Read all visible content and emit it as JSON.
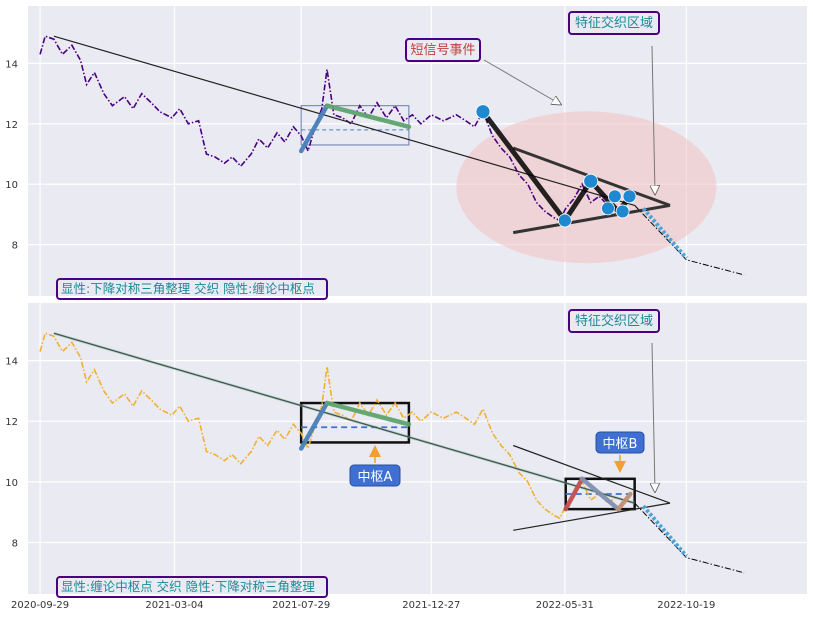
{
  "chart_data": {
    "type": "line",
    "shared_x_ticks": [
      "2020-09-29",
      "2021-03-04",
      "2021-07-29",
      "2021-12-27",
      "2022-05-31",
      "2022-10-19"
    ],
    "y_ticks": [
      "8",
      "10",
      "12",
      "14"
    ],
    "x_range": [
      "2020-09-15",
      "2023-03-08"
    ],
    "y_range": [
      6.3,
      15.9
    ],
    "grid": true,
    "colors": {
      "panel_bg": "#eaeaf2",
      "grid": "#c8c8c8",
      "price_top": "#4b0082",
      "price_bottom": "#f0b030",
      "trend_line": "#000000",
      "stroke_blue": "#4a7fb8",
      "stroke_green": "#5fa46b",
      "stroke_red": "#c05050",
      "stroke_brown": "#c09070",
      "marker_blue": "#1e88d0",
      "ellipse_fill": "#f2c4c4",
      "label_border": "#4b0082",
      "label_text_teal": "#1a8a9a",
      "label_text_red": "#c04040",
      "pivot_box_bg": "#3f6fd0"
    },
    "panels": [
      {
        "id": "top",
        "bottom_label": "显性:下降对称三角整理 交织 隐性:缠论中枢点",
        "region_label": "特征交织区域",
        "signal_label": "短信号事件",
        "series": [
          {
            "style": "dash-dot",
            "color": "#4b0082",
            "points": [
              [
                "2020-09-29",
                14.3
              ],
              [
                "2020-10-05",
                14.9
              ],
              [
                "2020-10-15",
                14.8
              ],
              [
                "2020-10-25",
                14.3
              ],
              [
                "2020-11-05",
                14.6
              ],
              [
                "2020-11-15",
                14.1
              ],
              [
                "2020-11-22",
                13.3
              ],
              [
                "2020-12-01",
                13.7
              ],
              [
                "2020-12-12",
                13.0
              ],
              [
                "2020-12-22",
                12.6
              ],
              [
                "2021-01-05",
                12.9
              ],
              [
                "2021-01-15",
                12.5
              ],
              [
                "2021-01-25",
                13.0
              ],
              [
                "2021-02-05",
                12.7
              ],
              [
                "2021-02-15",
                12.4
              ],
              [
                "2021-03-01",
                12.2
              ],
              [
                "2021-03-10",
                12.5
              ],
              [
                "2021-03-20",
                12.0
              ],
              [
                "2021-04-01",
                12.1
              ],
              [
                "2021-04-10",
                11.0
              ],
              [
                "2021-04-20",
                10.9
              ],
              [
                "2021-05-01",
                10.7
              ],
              [
                "2021-05-10",
                10.9
              ],
              [
                "2021-05-20",
                10.6
              ],
              [
                "2021-06-01",
                11.0
              ],
              [
                "2021-06-10",
                11.5
              ],
              [
                "2021-06-20",
                11.2
              ],
              [
                "2021-07-01",
                11.7
              ],
              [
                "2021-07-10",
                11.4
              ],
              [
                "2021-07-20",
                11.9
              ],
              [
                "2021-07-29",
                11.6
              ],
              [
                "2021-08-06",
                11.1
              ],
              [
                "2021-08-14",
                11.9
              ],
              [
                "2021-08-22",
                12.5
              ],
              [
                "2021-08-28",
                13.8
              ],
              [
                "2021-09-05",
                12.3
              ],
              [
                "2021-09-15",
                12.2
              ],
              [
                "2021-09-25",
                12.0
              ],
              [
                "2021-10-05",
                12.6
              ],
              [
                "2021-10-15",
                12.2
              ],
              [
                "2021-10-25",
                12.7
              ],
              [
                "2021-11-05",
                12.2
              ],
              [
                "2021-11-15",
                12.6
              ],
              [
                "2021-11-25",
                12.1
              ],
              [
                "2021-12-05",
                12.3
              ],
              [
                "2021-12-15",
                12.0
              ],
              [
                "2021-12-27",
                12.3
              ],
              [
                "2022-01-10",
                12.1
              ],
              [
                "2022-01-25",
                12.3
              ],
              [
                "2022-02-05",
                12.1
              ],
              [
                "2022-02-15",
                11.9
              ],
              [
                "2022-02-25",
                12.4
              ],
              [
                "2022-03-08",
                11.6
              ],
              [
                "2022-03-18",
                11.2
              ],
              [
                "2022-03-28",
                10.9
              ],
              [
                "2022-04-08",
                10.3
              ],
              [
                "2022-04-18",
                10.0
              ],
              [
                "2022-04-28",
                9.4
              ],
              [
                "2022-05-08",
                9.1
              ],
              [
                "2022-05-18",
                8.9
              ],
              [
                "2022-05-25",
                8.8
              ],
              [
                "2022-06-01",
                9.2
              ],
              [
                "2022-06-10",
                9.5
              ],
              [
                "2022-06-20",
                10.0
              ],
              [
                "2022-06-30",
                9.4
              ],
              [
                "2022-07-10",
                9.6
              ],
              [
                "2022-07-20",
                9.3
              ],
              [
                "2022-07-30",
                9.5
              ]
            ]
          },
          {
            "style": "dash-dot",
            "color": "#000000",
            "points": [
              [
                "2022-08-20",
                9.3
              ],
              [
                "2022-10-19",
                7.5
              ],
              [
                "2022-12-25",
                7.0
              ]
            ]
          }
        ],
        "trend_lines": [
          [
            [
              "2020-10-15",
              14.9
            ],
            [
              "2022-08-20",
              9.3
            ]
          ],
          [
            [
              "2022-04-01",
              11.2
            ],
            [
              "2022-09-30",
              9.3
            ]
          ],
          [
            [
              "2022-04-01",
              8.4
            ],
            [
              "2022-09-30",
              9.3
            ]
          ]
        ],
        "pivot_box": {
          "x": [
            "2021-07-29",
            "2021-12-01"
          ],
          "y": [
            11.3,
            12.6
          ],
          "mid": 11.8
        },
        "strokes": [
          {
            "color": "#4a7fb8",
            "points": [
              [
                "2021-07-29",
                11.1
              ],
              [
                "2021-08-28",
                12.6
              ]
            ]
          },
          {
            "color": "#5fa46b",
            "points": [
              [
                "2021-08-28",
                12.6
              ],
              [
                "2021-12-01",
                11.9
              ]
            ]
          },
          {
            "color": "#000000",
            "points": [
              [
                "2022-02-25",
                12.4
              ],
              [
                "2022-05-31",
                8.8
              ],
              [
                "2022-06-30",
                10.1
              ],
              [
                "2022-08-01",
                9.1
              ],
              [
                "2022-08-15",
                9.6
              ]
            ]
          }
        ],
        "markers": [
          [
            "2022-02-25",
            12.4
          ],
          [
            "2022-05-31",
            8.8
          ],
          [
            "2022-06-30",
            10.1
          ],
          [
            "2022-07-20",
            9.2
          ],
          [
            "2022-07-28",
            9.6
          ],
          [
            "2022-08-06",
            9.1
          ],
          [
            "2022-08-14",
            9.6
          ]
        ]
      },
      {
        "id": "bottom",
        "bottom_label": "显性:缠论中枢点 交织 隐性:下降对称三角整理",
        "region_label": "特征交织区域",
        "pivot_labels": [
          "中枢A",
          "中枢B"
        ],
        "series": [
          {
            "style": "dash-dot",
            "color": "#f0b030",
            "points": [
              [
                "2020-09-29",
                14.3
              ],
              [
                "2020-10-05",
                14.9
              ],
              [
                "2020-10-15",
                14.8
              ],
              [
                "2020-10-25",
                14.3
              ],
              [
                "2020-11-05",
                14.6
              ],
              [
                "2020-11-15",
                14.1
              ],
              [
                "2020-11-22",
                13.3
              ],
              [
                "2020-12-01",
                13.7
              ],
              [
                "2020-12-12",
                13.0
              ],
              [
                "2020-12-22",
                12.6
              ],
              [
                "2021-01-05",
                12.9
              ],
              [
                "2021-01-15",
                12.5
              ],
              [
                "2021-01-25",
                13.0
              ],
              [
                "2021-02-05",
                12.7
              ],
              [
                "2021-02-15",
                12.4
              ],
              [
                "2021-03-01",
                12.2
              ],
              [
                "2021-03-10",
                12.5
              ],
              [
                "2021-03-20",
                12.0
              ],
              [
                "2021-04-01",
                12.1
              ],
              [
                "2021-04-10",
                11.0
              ],
              [
                "2021-04-20",
                10.9
              ],
              [
                "2021-05-01",
                10.7
              ],
              [
                "2021-05-10",
                10.9
              ],
              [
                "2021-05-20",
                10.6
              ],
              [
                "2021-06-01",
                11.0
              ],
              [
                "2021-06-10",
                11.5
              ],
              [
                "2021-06-20",
                11.2
              ],
              [
                "2021-07-01",
                11.7
              ],
              [
                "2021-07-10",
                11.4
              ],
              [
                "2021-07-20",
                11.9
              ],
              [
                "2021-07-29",
                11.6
              ],
              [
                "2021-08-06",
                11.1
              ],
              [
                "2021-08-14",
                11.9
              ],
              [
                "2021-08-22",
                12.5
              ],
              [
                "2021-08-28",
                13.8
              ],
              [
                "2021-09-05",
                12.3
              ],
              [
                "2021-09-15",
                12.2
              ],
              [
                "2021-09-25",
                12.0
              ],
              [
                "2021-10-05",
                12.6
              ],
              [
                "2021-10-15",
                12.2
              ],
              [
                "2021-10-25",
                12.7
              ],
              [
                "2021-11-05",
                12.2
              ],
              [
                "2021-11-15",
                12.6
              ],
              [
                "2021-11-25",
                12.1
              ],
              [
                "2021-12-05",
                12.3
              ],
              [
                "2021-12-15",
                12.0
              ],
              [
                "2021-12-27",
                12.3
              ],
              [
                "2022-01-10",
                12.1
              ],
              [
                "2022-01-25",
                12.3
              ],
              [
                "2022-02-05",
                12.1
              ],
              [
                "2022-02-15",
                11.9
              ],
              [
                "2022-02-25",
                12.4
              ],
              [
                "2022-03-08",
                11.6
              ],
              [
                "2022-03-18",
                11.2
              ],
              [
                "2022-03-28",
                10.9
              ],
              [
                "2022-04-08",
                10.3
              ],
              [
                "2022-04-18",
                10.0
              ],
              [
                "2022-04-28",
                9.4
              ],
              [
                "2022-05-08",
                9.1
              ],
              [
                "2022-05-18",
                8.9
              ],
              [
                "2022-05-25",
                8.8
              ],
              [
                "2022-06-01",
                9.2
              ],
              [
                "2022-06-10",
                9.5
              ],
              [
                "2022-06-20",
                10.0
              ],
              [
                "2022-06-30",
                9.4
              ],
              [
                "2022-07-10",
                9.6
              ],
              [
                "2022-07-20",
                9.3
              ],
              [
                "2022-07-30",
                9.5
              ]
            ]
          },
          {
            "style": "dash-dot",
            "color": "#000000",
            "points": [
              [
                "2022-08-20",
                9.3
              ],
              [
                "2022-10-19",
                7.5
              ],
              [
                "2022-12-25",
                7.0
              ]
            ]
          }
        ],
        "trend_lines": [
          [
            [
              "2020-10-15",
              14.9
            ],
            [
              "2022-08-20",
              9.3
            ]
          ],
          [
            [
              "2022-04-01",
              11.2
            ],
            [
              "2022-09-30",
              9.3
            ]
          ],
          [
            [
              "2022-04-01",
              8.4
            ],
            [
              "2022-09-30",
              9.3
            ]
          ]
        ],
        "pivot_boxes": [
          {
            "x": [
              "2021-07-29",
              "2021-12-01"
            ],
            "y": [
              11.3,
              12.6
            ],
            "mid": 11.8
          },
          {
            "x": [
              "2022-06-01",
              "2022-08-20"
            ],
            "y": [
              9.1,
              10.1
            ],
            "mid": 9.6
          }
        ],
        "strokes": [
          {
            "color": "#4a7fb8",
            "points": [
              [
                "2021-07-29",
                11.1
              ],
              [
                "2021-08-28",
                12.6
              ]
            ]
          },
          {
            "color": "#5fa46b",
            "points": [
              [
                "2021-08-28",
                12.6
              ],
              [
                "2021-12-01",
                11.9
              ]
            ]
          },
          {
            "color": "#c05050",
            "points": [
              [
                "2022-06-01",
                9.1
              ],
              [
                "2022-06-20",
                10.1
              ]
            ]
          },
          {
            "color": "#8090b0",
            "points": [
              [
                "2022-06-20",
                10.1
              ],
              [
                "2022-08-01",
                9.1
              ]
            ]
          },
          {
            "color": "#c09070",
            "points": [
              [
                "2022-08-01",
                9.1
              ],
              [
                "2022-08-15",
                9.6
              ]
            ]
          }
        ]
      }
    ]
  }
}
